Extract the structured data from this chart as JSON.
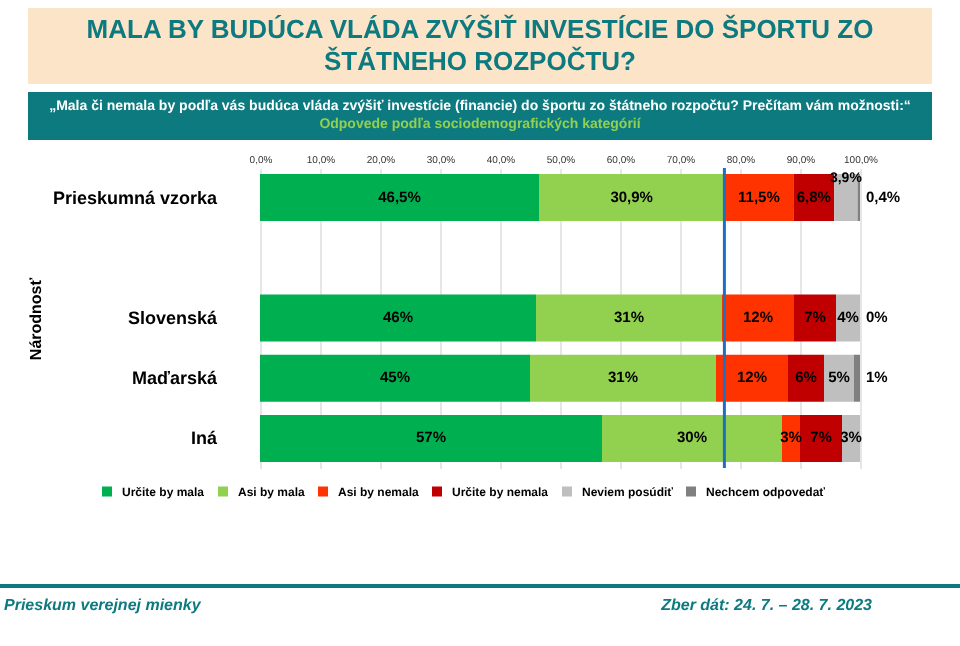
{
  "chart_data": {
    "type": "bar",
    "orientation": "horizontal",
    "stacked": true,
    "title": "MALA BY BUDÚCA VLÁDA ZVÝŠIŤ INVESTÍCIE DO ŠPORTU ZO ŠTÁTNEHO ROZPOČTU?",
    "subtitle": "„Mala či nemala by podľa vás budúca vláda zvýšiť investície (financie) do športu zo štátneho rozpočtu? Prečítam vám možnosti:“ Odpovede podľa sociodemografických kategórií",
    "ylabel": "Národnosť",
    "categories": [
      "Prieskumná vzorka",
      null,
      "Slovenská",
      "Maďarská",
      "Iná"
    ],
    "series": [
      {
        "name": "Určite by mala",
        "color": "#00b050",
        "values": [
          46.5,
          null,
          46,
          45,
          57
        ],
        "value_labels": [
          "46,5%",
          null,
          "46%",
          "45%",
          "57%"
        ]
      },
      {
        "name": "Asi by mala",
        "color": "#92d050",
        "values": [
          30.9,
          null,
          31,
          31,
          30
        ],
        "value_labels": [
          "30,9%",
          null,
          "31%",
          "31%",
          "30%"
        ]
      },
      {
        "name": "Asi by nemala",
        "color": "#ff3300",
        "values": [
          11.5,
          null,
          12,
          12,
          3
        ],
        "value_labels": [
          "11,5%",
          null,
          "12%",
          "12%",
          "3%"
        ]
      },
      {
        "name": "Určite by nemala",
        "color": "#c00000",
        "values": [
          6.8,
          null,
          7,
          6,
          7
        ],
        "value_labels": [
          "6,8%",
          null,
          "7%",
          "6%",
          "7%"
        ]
      },
      {
        "name": "Neviem posúdiť",
        "color": "#bfbfbf",
        "values": [
          3.9,
          null,
          4,
          5,
          3
        ],
        "value_labels": [
          "3,9%",
          null,
          "4%",
          "5%",
          "3%"
        ]
      },
      {
        "name": "Nechcem odpovedať",
        "color": "#808080",
        "values": [
          0.4,
          null,
          0,
          1,
          0
        ],
        "value_labels": [
          "0,4%",
          null,
          "0%",
          "1%",
          null
        ]
      }
    ],
    "xlim": [
      0,
      100
    ],
    "xticks": [
      {
        "value": 0,
        "label": "0,0%"
      },
      {
        "value": 10,
        "label": "10,0%"
      },
      {
        "value": 20,
        "label": "20,0%"
      },
      {
        "value": 30,
        "label": "30,0%"
      },
      {
        "value": 40,
        "label": "40,0%"
      },
      {
        "value": 50,
        "label": "50,0%"
      },
      {
        "value": 60,
        "label": "60,0%"
      },
      {
        "value": 70,
        "label": "70,0%"
      },
      {
        "value": 80,
        "label": "80,0%"
      },
      {
        "value": 90,
        "label": "90,0%"
      },
      {
        "value": 100,
        "label": "100,0%"
      }
    ],
    "grid": "x",
    "legend": "bottom",
    "ref_lines": [
      {
        "axis": "x",
        "value": 77.4,
        "color": "#1f6fc0"
      }
    ],
    "annotations": [
      "Prieskum verejnej mienky",
      "Zber dát: 24. 7. – 28. 7. 2023"
    ]
  }
}
